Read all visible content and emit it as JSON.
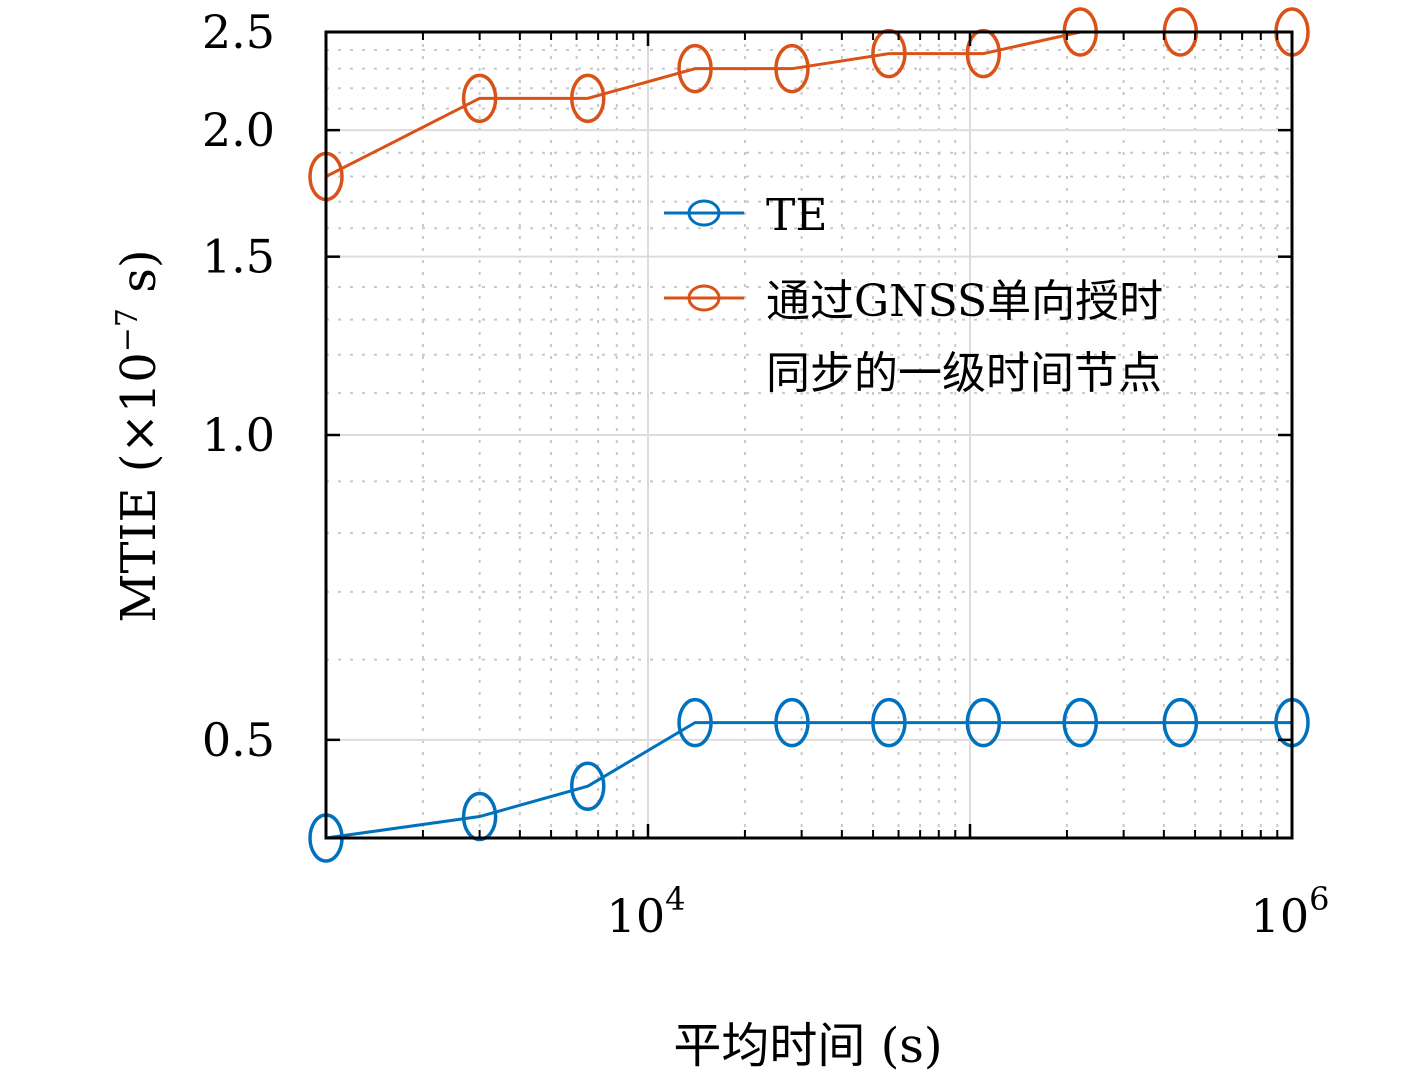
{
  "chart_data": {
    "type": "line",
    "title": "",
    "xlabel": "平均时间 (s)",
    "ylabel": "MTIE (×10",
    "ylabel_exponent": "−7",
    "ylabel_suffix": " s)",
    "x_scale": "log",
    "y_scale": "log",
    "xlim": [
      1000,
      1000000
    ],
    "ylim": [
      0.4,
      2.5
    ],
    "x_ticks": [
      {
        "value": 10000,
        "base": "10",
        "exp": "4"
      },
      {
        "value": 1000000,
        "base": "10",
        "exp": "6"
      }
    ],
    "y_ticks": [
      {
        "value": 0.5,
        "label": "0.5"
      },
      {
        "value": 1.0,
        "label": "1.0"
      },
      {
        "value": 1.5,
        "label": "1.5"
      },
      {
        "value": 2.0,
        "label": "2.0"
      },
      {
        "value": 2.5,
        "label": "2.5"
      }
    ],
    "grid": true,
    "minor_grid": true,
    "legend_position": "center-right",
    "series": [
      {
        "name": "TE",
        "color": "#0072bd",
        "marker": "circle",
        "points": [
          {
            "x": 1000,
            "y": 0.4
          },
          {
            "x": 3000,
            "y": 0.42
          },
          {
            "x": 6500,
            "y": 0.45
          },
          {
            "x": 14000,
            "y": 0.52
          },
          {
            "x": 28000,
            "y": 0.52
          },
          {
            "x": 56000,
            "y": 0.52
          },
          {
            "x": 110000,
            "y": 0.52
          },
          {
            "x": 220000,
            "y": 0.52
          },
          {
            "x": 450000,
            "y": 0.52
          },
          {
            "x": 1000000,
            "y": 0.52
          }
        ]
      },
      {
        "name": "通过GNSS单向授时同步的一级时间节点",
        "name_lines": [
          "通过GNSS单向授时",
          "同步的一级时间节点"
        ],
        "color": "#d95319",
        "marker": "circle",
        "points": [
          {
            "x": 1000,
            "y": 1.8
          },
          {
            "x": 3000,
            "y": 2.15
          },
          {
            "x": 6500,
            "y": 2.15
          },
          {
            "x": 14000,
            "y": 2.3
          },
          {
            "x": 28000,
            "y": 2.3
          },
          {
            "x": 56000,
            "y": 2.38
          },
          {
            "x": 110000,
            "y": 2.38
          },
          {
            "x": 220000,
            "y": 2.5
          },
          {
            "x": 450000,
            "y": 2.5
          },
          {
            "x": 1000000,
            "y": 2.5
          }
        ]
      }
    ]
  }
}
